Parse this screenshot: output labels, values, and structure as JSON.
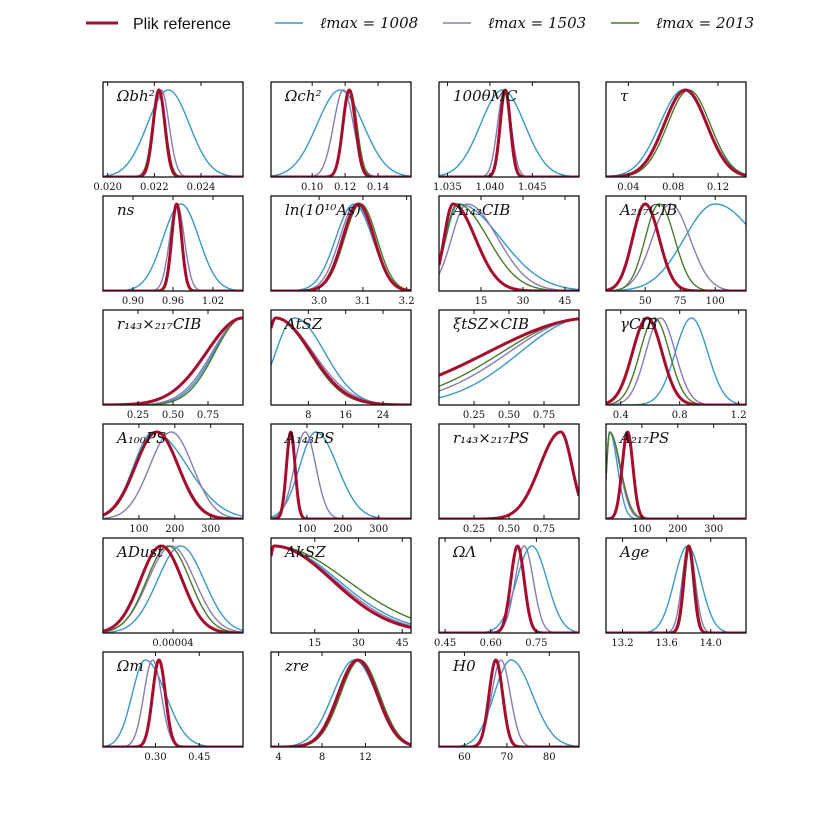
{
  "legend": {
    "entries": [
      {
        "label": "Plik reference",
        "color": "#a50d2f",
        "width": 3
      },
      {
        "label": "ℓmax = 1008",
        "color": "#3c98c8",
        "width": 1.4
      },
      {
        "label": "ℓmax = 1503",
        "color": "#8a7bb5",
        "width": 1.4
      },
      {
        "label": "ℓmax = 2013",
        "color": "#4a7a2e",
        "width": 1.4
      }
    ]
  },
  "chart_data": {
    "type": "line",
    "series_names": [
      "Plik reference",
      "ℓmax = 1008",
      "ℓmax = 1503",
      "ℓmax = 2013"
    ],
    "panels": [
      {
        "title": "Ωbh²",
        "xlim": [
          0.0198,
          0.0258
        ],
        "ticks": [
          0.02,
          0.022,
          0.024
        ],
        "tick_labels": [
          "0.020",
          "0.022",
          "0.024"
        ],
        "curves": [
          {
            "series": 0,
            "kind": "gauss",
            "mu": 0.0222,
            "sigma": 0.00025
          },
          {
            "series": 1,
            "kind": "gauss",
            "mu": 0.0226,
            "sigma": 0.0009
          },
          {
            "series": 2,
            "kind": "gauss",
            "mu": 0.0223,
            "sigma": 0.00033
          },
          {
            "series": 3,
            "kind": "gauss",
            "mu": 0.0222,
            "sigma": 0.00028
          }
        ]
      },
      {
        "title": "Ωch²",
        "xlim": [
          0.075,
          0.16
        ],
        "ticks": [
          0.1,
          0.12,
          0.14
        ],
        "tick_labels": [
          "0.10",
          "0.12",
          "0.14"
        ],
        "curves": [
          {
            "series": 0,
            "kind": "gauss",
            "mu": 0.1225,
            "sigma": 0.0038
          },
          {
            "series": 1,
            "kind": "gauss",
            "mu": 0.117,
            "sigma": 0.014
          },
          {
            "series": 2,
            "kind": "gauss",
            "mu": 0.119,
            "sigma": 0.006
          },
          {
            "series": 3,
            "kind": "gauss",
            "mu": 0.123,
            "sigma": 0.0042
          }
        ]
      },
      {
        "title": "100θMC",
        "xlim": [
          1.034,
          1.0505
        ],
        "ticks": [
          1.035,
          1.04,
          1.045
        ],
        "tick_labels": [
          "1.035",
          "1.040",
          "1.045"
        ],
        "curves": [
          {
            "series": 0,
            "kind": "gauss",
            "mu": 1.0418,
            "sigma": 0.0006
          },
          {
            "series": 1,
            "kind": "gauss",
            "mu": 1.0415,
            "sigma": 0.0026
          },
          {
            "series": 2,
            "kind": "gauss",
            "mu": 1.0417,
            "sigma": 0.0008
          },
          {
            "series": 3,
            "kind": "gauss",
            "mu": 1.0419,
            "sigma": 0.0006
          }
        ]
      },
      {
        "title": "τ",
        "xlim": [
          0.02,
          0.145
        ],
        "ticks": [
          0.04,
          0.08,
          0.12
        ],
        "tick_labels": [
          "0.04",
          "0.08",
          "0.12"
        ],
        "curves": [
          {
            "series": 0,
            "kind": "gauss",
            "mu": 0.091,
            "sigma": 0.019
          },
          {
            "series": 1,
            "kind": "gauss",
            "mu": 0.089,
            "sigma": 0.021
          },
          {
            "series": 2,
            "kind": "gauss",
            "mu": 0.091,
            "sigma": 0.019
          },
          {
            "series": 3,
            "kind": "gauss",
            "mu": 0.094,
            "sigma": 0.019
          }
        ]
      },
      {
        "title": "ns",
        "xlim": [
          0.855,
          1.065
        ],
        "ticks": [
          0.9,
          0.96,
          1.02
        ],
        "tick_labels": [
          "0.90",
          "0.96",
          "1.02"
        ],
        "curves": [
          {
            "series": 0,
            "kind": "gauss",
            "mu": 0.9655,
            "sigma": 0.0075
          },
          {
            "series": 1,
            "kind": "gauss",
            "mu": 0.972,
            "sigma": 0.027
          },
          {
            "series": 2,
            "kind": "gauss",
            "mu": 0.966,
            "sigma": 0.011
          },
          {
            "series": 3,
            "kind": "gauss",
            "mu": 0.965,
            "sigma": 0.008
          }
        ]
      },
      {
        "title": "ln(10¹⁰As)",
        "xlim": [
          2.89,
          3.21
        ],
        "ticks": [
          3.0,
          3.1,
          3.2
        ],
        "tick_labels": [
          "3.0",
          "3.1",
          "3.2"
        ],
        "curves": [
          {
            "series": 0,
            "kind": "gauss",
            "mu": 3.09,
            "sigma": 0.036
          },
          {
            "series": 1,
            "kind": "gauss",
            "mu": 3.08,
            "sigma": 0.042
          },
          {
            "series": 2,
            "kind": "gauss",
            "mu": 3.085,
            "sigma": 0.038
          },
          {
            "series": 3,
            "kind": "gauss",
            "mu": 3.095,
            "sigma": 0.037
          }
        ]
      },
      {
        "title": "A₁₄₃CIB",
        "xlim": [
          0,
          50
        ],
        "ticks": [
          15,
          30,
          45
        ],
        "tick_labels": [
          "15",
          "30",
          "45"
        ],
        "curves": [
          {
            "series": 0,
            "kind": "skew",
            "mu": 5,
            "sl": 3.2,
            "sr": 8
          },
          {
            "series": 1,
            "kind": "skew",
            "mu": 7,
            "sl": 4.5,
            "sr": 15
          },
          {
            "series": 2,
            "kind": "skew",
            "mu": 10,
            "sl": 5.5,
            "sr": 11
          },
          {
            "series": 3,
            "kind": "skew",
            "mu": 6.5,
            "sl": 4.2,
            "sr": 11
          }
        ]
      },
      {
        "title": "A₂₁₇CIB",
        "xlim": [
          22,
          122
        ],
        "ticks": [
          50,
          75,
          100
        ],
        "tick_labels": [
          "50",
          "75",
          "100"
        ],
        "curves": [
          {
            "series": 0,
            "kind": "skew",
            "mu": 50,
            "sl": 9,
            "sr": 10
          },
          {
            "series": 1,
            "kind": "skew",
            "mu": 100,
            "sl": 22,
            "sr": 30
          },
          {
            "series": 2,
            "kind": "skew",
            "mu": 68,
            "sl": 13,
            "sr": 14
          },
          {
            "series": 3,
            "kind": "skew",
            "mu": 60,
            "sl": 10,
            "sr": 11
          }
        ]
      },
      {
        "title": "r₁₄₃×₂₁₇CIB",
        "xlim": [
          0,
          1.0
        ],
        "ticks": [
          0.25,
          0.5,
          0.75
        ],
        "tick_labels": [
          "0.25",
          "0.50",
          "0.75"
        ],
        "curves": [
          {
            "series": 0,
            "kind": "rise",
            "mu": 1.0,
            "sigma": 0.26
          },
          {
            "series": 1,
            "kind": "rise",
            "mu": 1.0,
            "sigma": 0.21
          },
          {
            "series": 2,
            "kind": "rise",
            "mu": 1.0,
            "sigma": 0.22
          },
          {
            "series": 3,
            "kind": "rise",
            "mu": 1.0,
            "sigma": 0.2
          }
        ]
      },
      {
        "title": "AtSZ",
        "xlim": [
          0,
          30
        ],
        "ticks": [
          8,
          16,
          24
        ],
        "tick_labels": [
          "8",
          "16",
          "24"
        ],
        "curves": [
          {
            "series": 0,
            "kind": "skew",
            "mu": 1,
            "sl": 2,
            "sr": 7.5
          },
          {
            "series": 1,
            "kind": "skew",
            "mu": 5,
            "sl": 4,
            "sr": 6.5
          },
          {
            "series": 2,
            "kind": "skew",
            "mu": 1,
            "sl": 2,
            "sr": 8
          },
          {
            "series": 3,
            "kind": "skew",
            "mu": 1,
            "sl": 2,
            "sr": 7.2
          }
        ]
      },
      {
        "title": "ξtSZ×CIB",
        "xlim": [
          0,
          1.0
        ],
        "ticks": [
          0.25,
          0.5,
          0.75
        ],
        "tick_labels": [
          "0.25",
          "0.50",
          "0.75"
        ],
        "curves": [
          {
            "series": 0,
            "kind": "rise",
            "mu": 1.1,
            "sigma": 0.75
          },
          {
            "series": 1,
            "kind": "rise",
            "mu": 1.05,
            "sigma": 0.47
          },
          {
            "series": 2,
            "kind": "rise",
            "mu": 1.05,
            "sigma": 0.55
          },
          {
            "series": 3,
            "kind": "rise",
            "mu": 1.05,
            "sigma": 0.6
          }
        ]
      },
      {
        "title": "γCIB",
        "xlim": [
          0.3,
          1.25
        ],
        "ticks": [
          0.4,
          0.8,
          1.2
        ],
        "tick_labels": [
          "0.4",
          "0.8",
          "1.2"
        ],
        "curves": [
          {
            "series": 0,
            "kind": "gauss",
            "mu": 0.58,
            "sigma": 0.1
          },
          {
            "series": 1,
            "kind": "gauss",
            "mu": 0.88,
            "sigma": 0.11
          },
          {
            "series": 2,
            "kind": "gauss",
            "mu": 0.67,
            "sigma": 0.1
          },
          {
            "series": 3,
            "kind": "gauss",
            "mu": 0.63,
            "sigma": 0.1
          }
        ]
      },
      {
        "title": "A₁₀₀PS",
        "xlim": [
          0,
          390
        ],
        "ticks": [
          100,
          200,
          300
        ],
        "tick_labels": [
          "100",
          "200",
          "300"
        ],
        "curves": [
          {
            "series": 0,
            "kind": "gauss",
            "mu": 150,
            "sigma": 60
          },
          {
            "series": 1,
            "kind": "skew",
            "mu": 140,
            "sl": 55,
            "sr": 95
          },
          {
            "series": 2,
            "kind": "gauss",
            "mu": 190,
            "sigma": 60
          },
          {
            "series": 3,
            "kind": "gauss",
            "mu": 150,
            "sigma": 58
          }
        ]
      },
      {
        "title": "A₁₄₃PS",
        "xlim": [
          0,
          390
        ],
        "ticks": [
          100,
          200,
          300
        ],
        "tick_labels": [
          "100",
          "200",
          "300"
        ],
        "curves": [
          {
            "series": 0,
            "kind": "gauss",
            "mu": 55,
            "sigma": 12
          },
          {
            "series": 1,
            "kind": "skew",
            "mu": 125,
            "sl": 45,
            "sr": 60
          },
          {
            "series": 2,
            "kind": "gauss",
            "mu": 95,
            "sigma": 30
          },
          {
            "series": 3,
            "kind": "gauss",
            "mu": 55,
            "sigma": 13
          }
        ]
      },
      {
        "title": "r₁₄₃×₂₁₇PS",
        "xlim": [
          0,
          1.0
        ],
        "ticks": [
          0.25,
          0.5,
          0.75
        ],
        "tick_labels": [
          "0.25",
          "0.50",
          "0.75"
        ],
        "curves": [
          {
            "series": 0,
            "kind": "skew",
            "mu": 0.87,
            "sl": 0.15,
            "sr": 0.08
          }
        ]
      },
      {
        "title": "A₂₁₇PS",
        "xlim": [
          0,
          390
        ],
        "ticks": [
          100,
          200,
          300
        ],
        "tick_labels": [
          "100",
          "200",
          "300"
        ],
        "curves": [
          {
            "series": 0,
            "kind": "gauss",
            "mu": 60,
            "sigma": 15
          },
          {
            "series": 1,
            "kind": "skew",
            "mu": 10,
            "sl": 8,
            "sr": 22
          },
          {
            "series": 2,
            "kind": "skew",
            "mu": 10,
            "sl": 8,
            "sr": 28
          },
          {
            "series": 3,
            "kind": "skew",
            "mu": 10,
            "sl": 8,
            "sr": 30
          }
        ]
      },
      {
        "title": "ADust",
        "xlim": [
          -5e-05,
          0.00013
        ],
        "ticks": [
          4e-05
        ],
        "tick_labels": [
          "0.00004"
        ],
        "curves": [
          {
            "series": 0,
            "kind": "gauss",
            "mu": 2.5e-05,
            "sigma": 2.7e-05
          },
          {
            "series": 1,
            "kind": "gauss",
            "mu": 5e-05,
            "sigma": 3e-05
          },
          {
            "series": 2,
            "kind": "gauss",
            "mu": 3.8e-05,
            "sigma": 3e-05
          },
          {
            "series": 3,
            "kind": "gauss",
            "mu": 3.4e-05,
            "sigma": 2.8e-05
          }
        ]
      },
      {
        "title": "AkSZ",
        "xlim": [
          0,
          48
        ],
        "ticks": [
          15,
          30,
          45
        ],
        "tick_labels": [
          "15",
          "30",
          "45"
        ],
        "curves": [
          {
            "series": 0,
            "kind": "skew",
            "mu": 1,
            "sl": 2,
            "sr": 20
          },
          {
            "series": 1,
            "kind": "skew",
            "mu": 1,
            "sl": 2,
            "sr": 22
          },
          {
            "series": 2,
            "kind": "skew",
            "mu": 1,
            "sl": 2,
            "sr": 21
          },
          {
            "series": 3,
            "kind": "skew",
            "mu": 1,
            "sl": 2,
            "sr": 25
          }
        ]
      },
      {
        "title": "ΩΛ",
        "xlim": [
          0.43,
          0.89
        ],
        "ticks": [
          0.45,
          0.6,
          0.75
        ],
        "tick_labels": [
          "0.45",
          "0.60",
          "0.75"
        ],
        "curves": [
          {
            "series": 0,
            "kind": "gauss",
            "mu": 0.688,
            "sigma": 0.022
          },
          {
            "series": 1,
            "kind": "gauss",
            "mu": 0.735,
            "sigma": 0.05
          },
          {
            "series": 2,
            "kind": "gauss",
            "mu": 0.71,
            "sigma": 0.03
          },
          {
            "series": 3,
            "kind": "gauss",
            "mu": 0.69,
            "sigma": 0.022
          }
        ]
      },
      {
        "title": "Age",
        "xlim": [
          13.05,
          14.32
        ],
        "ticks": [
          13.2,
          13.6,
          14.0
        ],
        "tick_labels": [
          "13.2",
          "13.6",
          "14.0"
        ],
        "curves": [
          {
            "series": 0,
            "kind": "gauss",
            "mu": 13.8,
            "sigma": 0.045
          },
          {
            "series": 1,
            "kind": "gauss",
            "mu": 13.79,
            "sigma": 0.12
          },
          {
            "series": 2,
            "kind": "gauss",
            "mu": 13.8,
            "sigma": 0.06
          },
          {
            "series": 3,
            "kind": "gauss",
            "mu": 13.81,
            "sigma": 0.045
          }
        ]
      },
      {
        "title": "Ωm",
        "xlim": [
          0.12,
          0.6
        ],
        "ticks": [
          0.3,
          0.45
        ],
        "tick_labels": [
          "0.30",
          "0.45"
        ],
        "curves": [
          {
            "series": 0,
            "kind": "gauss",
            "mu": 0.312,
            "sigma": 0.022
          },
          {
            "series": 1,
            "kind": "skew",
            "mu": 0.265,
            "sl": 0.045,
            "sr": 0.07
          },
          {
            "series": 2,
            "kind": "gauss",
            "mu": 0.29,
            "sigma": 0.03
          },
          {
            "series": 3,
            "kind": "gauss",
            "mu": 0.31,
            "sigma": 0.022
          }
        ]
      },
      {
        "title": "zre",
        "xlim": [
          3.3,
          16.2
        ],
        "ticks": [
          4,
          8,
          12
        ],
        "tick_labels": [
          "4",
          "8",
          "12"
        ],
        "curves": [
          {
            "series": 0,
            "kind": "gauss",
            "mu": 11.3,
            "sigma": 1.8
          },
          {
            "series": 1,
            "kind": "gauss",
            "mu": 11.0,
            "sigma": 2.0
          },
          {
            "series": 2,
            "kind": "gauss",
            "mu": 11.2,
            "sigma": 1.8
          },
          {
            "series": 3,
            "kind": "gauss",
            "mu": 11.5,
            "sigma": 1.8
          }
        ]
      },
      {
        "title": "H0",
        "xlim": [
          54,
          87
        ],
        "ticks": [
          60,
          70,
          80
        ],
        "tick_labels": [
          "60",
          "70",
          "80"
        ],
        "curves": [
          {
            "series": 0,
            "kind": "gauss",
            "mu": 67.4,
            "sigma": 1.6
          },
          {
            "series": 1,
            "kind": "skew",
            "mu": 71,
            "sl": 4,
            "sr": 5
          },
          {
            "series": 2,
            "kind": "gauss",
            "mu": 68.6,
            "sigma": 2.2
          },
          {
            "series": 3,
            "kind": "gauss",
            "mu": 67.3,
            "sigma": 1.6
          }
        ]
      }
    ]
  }
}
